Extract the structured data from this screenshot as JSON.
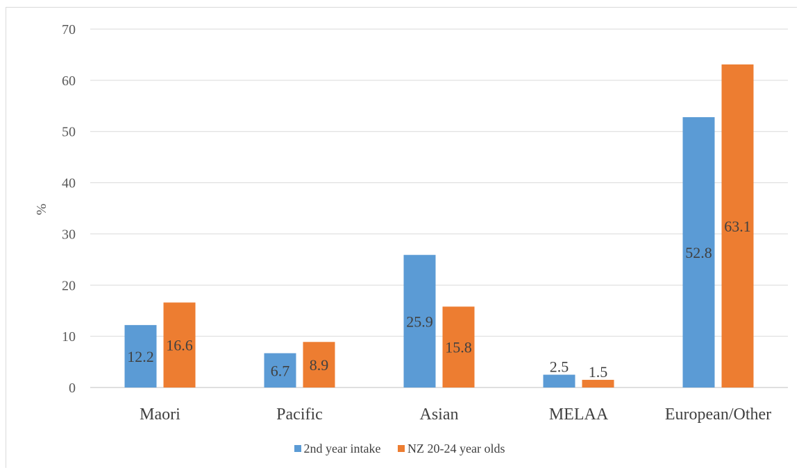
{
  "chart_data": {
    "type": "bar",
    "categories": [
      "Maori",
      "Pacific",
      "Asian",
      "MELAA",
      "European/Other"
    ],
    "series": [
      {
        "name": "2nd year intake",
        "values": [
          12.2,
          6.7,
          25.9,
          2.5,
          52.8
        ],
        "color": "#5b9bd5"
      },
      {
        "name": "NZ 20-24 year olds",
        "values": [
          16.6,
          8.9,
          15.8,
          1.5,
          63.1
        ],
        "color": "#ed7d31"
      }
    ],
    "ylabel": "%",
    "ylim": [
      0,
      70
    ],
    "yticks": [
      "0",
      "10",
      "20",
      "30",
      "40",
      "50",
      "60",
      "70"
    ],
    "grid": true,
    "legend": "bottom"
  }
}
